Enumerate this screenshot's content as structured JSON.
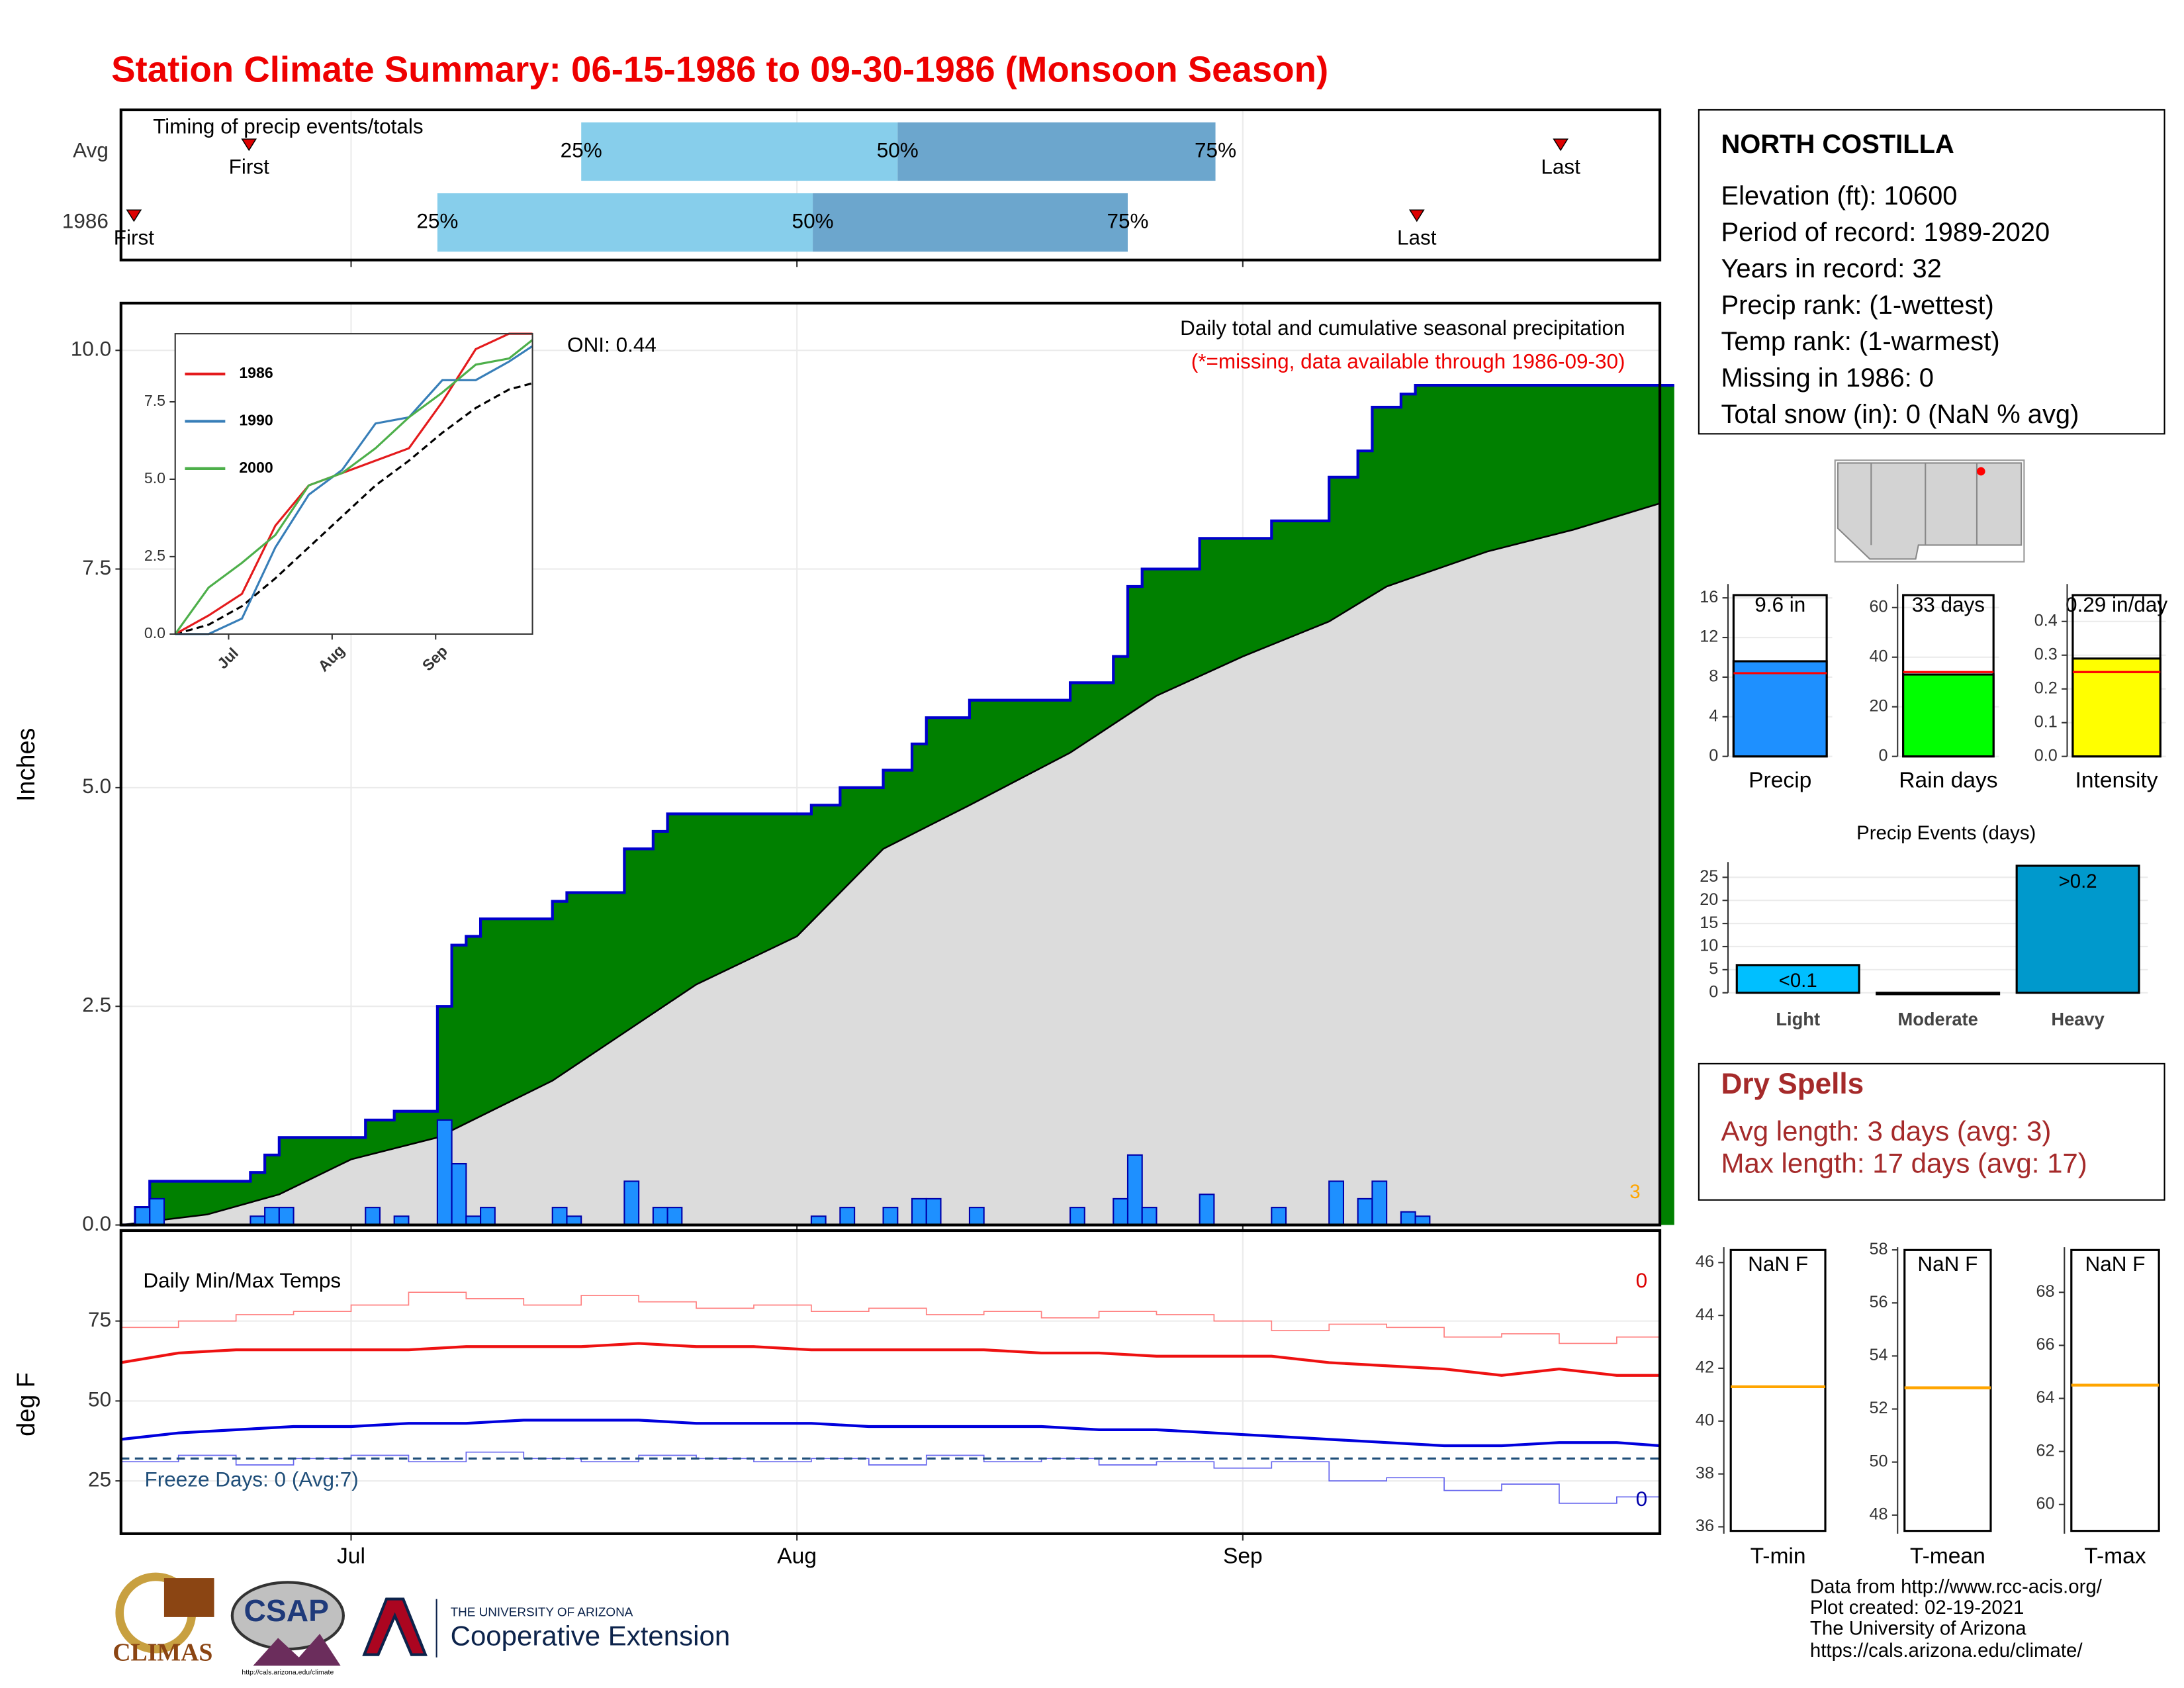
{
  "title": "Station Climate Summary: 06-15-1986 to 09-30-1986 (Monsoon Season)",
  "chart_data": [
    {
      "type": "timing",
      "title": "Timing of precip events/totals",
      "xlim": [
        0,
        107
      ],
      "xticks": [
        16,
        47,
        78
      ],
      "labels": {
        "first": "First",
        "q25": "25%",
        "q50": "50%",
        "q75": "75%",
        "last": "Last"
      },
      "colors": [
        "#87ceeb",
        "#6ca6cd"
      ],
      "marker_color": "#dd0000",
      "rows": [
        {
          "name": "Avg",
          "first": 8.9,
          "q25": 32,
          "q50": 54,
          "q75": 76.1,
          "last": 100.1
        },
        {
          "name": "1986",
          "first": 0.9,
          "q25": 22,
          "q50": 48.1,
          "q75": 70,
          "last": 90.1
        }
      ]
    },
    {
      "type": "precip_cumulative",
      "title": "Daily total and cumulative seasonal precipitation",
      "subtitle": "(*=missing, data available through 1986-09-30)",
      "ylabel": "Inches",
      "annotations": [
        "ONI: 0.44",
        "3"
      ],
      "xlim": [
        0,
        107
      ],
      "xticks": [
        {
          "value": 16,
          "label": "Jul"
        },
        {
          "value": 47,
          "label": "Aug"
        },
        {
          "value": 78,
          "label": "Sep"
        }
      ],
      "ylim": [
        0,
        10.54
      ],
      "yticks": [
        {
          "value": 0,
          "label": "0.0"
        },
        2.5,
        {
          "value": 5,
          "label": "5.0"
        },
        7.5,
        {
          "value": 10,
          "label": "10.0"
        }
      ],
      "grid": true,
      "fill_color": "#008000",
      "line_color": "#0000cc",
      "daily": {
        "color": "#1e90ff",
        "values": [
          0,
          0.2,
          0.3,
          0,
          0,
          0,
          0,
          0,
          0,
          0.1,
          0.2,
          0.2,
          0,
          0,
          0,
          0,
          0,
          0.2,
          0,
          0.1,
          0,
          0,
          1.2,
          0.7,
          0.1,
          0.2,
          0,
          0,
          0,
          0,
          0.2,
          0.1,
          0,
          0,
          0,
          0.5,
          0,
          0.2,
          0.2,
          0,
          0,
          0,
          0,
          0,
          0,
          0,
          0,
          0,
          0.1,
          0,
          0.2,
          0,
          0,
          0.2,
          0,
          0.3,
          0.3,
          0,
          0,
          0.2,
          0,
          0,
          0,
          0,
          0,
          0,
          0.2,
          0,
          0,
          0.3,
          0.8,
          0.2,
          0,
          0,
          0,
          0.35,
          0,
          0,
          0,
          0,
          0.2,
          0,
          0,
          0,
          0.5,
          0,
          0.3,
          0.5,
          0,
          0.15,
          0.1,
          0,
          0,
          0,
          0,
          0,
          0,
          0,
          0,
          0,
          0,
          0,
          0,
          0,
          0,
          0,
          0,
          0
        ]
      },
      "average": {
        "color": "#dcdcdc",
        "x": [
          0,
          6,
          11,
          16,
          22,
          30,
          40,
          47,
          53,
          59,
          66,
          72,
          78,
          84,
          88,
          95,
          101,
          107
        ],
        "values": [
          0,
          0.12,
          0.35,
          0.75,
          1.0,
          1.65,
          2.75,
          3.3,
          4.3,
          4.8,
          5.4,
          6.05,
          6.5,
          6.9,
          7.3,
          7.7,
          7.95,
          8.25
        ]
      }
    },
    {
      "type": "line",
      "xlim": [
        0,
        107
      ],
      "xticks": [
        {
          "value": 16,
          "label": "Jul"
        },
        {
          "value": 47,
          "label": "Aug"
        },
        {
          "value": 78,
          "label": "Sep"
        }
      ],
      "ylim": [
        0,
        9.7
      ],
      "yticks": [
        {
          "value": 0,
          "label": "0.0"
        },
        2.5,
        {
          "value": 5,
          "label": "5.0"
        },
        7.5
      ],
      "x": [
        0,
        10,
        20,
        30,
        40,
        50,
        60,
        70,
        80,
        90,
        100,
        107
      ],
      "series": [
        {
          "name": "1986",
          "color": "#e41a1c",
          "values": [
            0,
            0.6,
            1.3,
            3.5,
            4.8,
            5.2,
            5.6,
            6.0,
            7.5,
            9.2,
            9.7,
            9.7
          ]
        },
        {
          "name": "1990",
          "color": "#377eb8",
          "values": [
            0,
            0,
            0.5,
            2.8,
            4.5,
            5.3,
            6.8,
            7.0,
            8.2,
            8.2,
            8.8,
            9.3
          ]
        },
        {
          "name": "2000",
          "color": "#4daf4a",
          "values": [
            0,
            1.5,
            2.3,
            3.2,
            4.8,
            5.2,
            6.0,
            7.0,
            7.8,
            8.7,
            8.9,
            9.5
          ]
        }
      ],
      "average": {
        "color": "#000000",
        "values": [
          0,
          0.3,
          0.9,
          1.8,
          2.8,
          3.8,
          4.8,
          5.6,
          6.5,
          7.3,
          7.9,
          8.1
        ]
      }
    },
    {
      "type": "temps",
      "title": "Daily Min/Max Temps",
      "ylabel": "deg F",
      "xlim": [
        0,
        107
      ],
      "xticks": [
        {
          "value": 16,
          "label": "Jul"
        },
        {
          "value": 47,
          "label": "Aug"
        },
        {
          "value": 78,
          "label": "Sep"
        }
      ],
      "ylim": [
        8.5,
        103.3
      ],
      "yticks": [
        25,
        50,
        75
      ],
      "grid": true,
      "x": [
        0,
        4,
        8,
        12,
        16,
        20,
        24,
        28,
        32,
        36,
        40,
        44,
        48,
        52,
        56,
        60,
        64,
        68,
        72,
        76,
        80,
        84,
        88,
        92,
        96,
        100,
        104,
        107
      ],
      "series": [
        {
          "color": "#ff8080",
          "values": [
            73,
            75,
            77,
            78,
            80,
            84,
            82,
            80,
            83,
            81,
            79,
            80,
            78,
            79,
            77,
            78,
            76,
            78,
            77,
            75,
            72,
            74,
            73,
            70,
            71,
            68,
            70,
            71
          ]
        },
        {
          "color": "#ee1111",
          "values": [
            62,
            65,
            66,
            66,
            66,
            66,
            67,
            67,
            67,
            68,
            67,
            67,
            66,
            66,
            66,
            66,
            65,
            65,
            64,
            64,
            64,
            62,
            61,
            60,
            58,
            60,
            58,
            58
          ]
        },
        {
          "color": "#0000dd",
          "values": [
            38,
            40,
            41,
            42,
            42,
            43,
            43,
            44,
            44,
            44,
            43,
            43,
            43,
            42,
            42,
            42,
            42,
            41,
            41,
            40,
            39,
            38,
            37,
            36,
            36,
            37,
            37,
            36
          ]
        },
        {
          "color": "#6666ee",
          "values": [
            31,
            33,
            30,
            32,
            33,
            31,
            34,
            32,
            31,
            33,
            32,
            31,
            32,
            30,
            33,
            31,
            32,
            30,
            31,
            29,
            31,
            25,
            26,
            22,
            24,
            18,
            20,
            16
          ]
        }
      ],
      "freeze": {
        "value": 32,
        "color": "#1f4e79"
      },
      "annotations": [
        {
          "text": "Freeze Days: 0 (Avg:7)",
          "color": "#1f4e79"
        },
        {
          "text": "0",
          "color": "#dd0000"
        },
        {
          "text": "0",
          "color": "#0000aa"
        }
      ]
    },
    {
      "type": "bar",
      "categories": [
        "Precip"
      ],
      "values": [
        9.6
      ],
      "value_labels": [
        "9.6 in"
      ],
      "color": "#1e90ff",
      "average": 8.4,
      "average_color": "#ff0000",
      "ylim": [
        0,
        17.4
      ],
      "yticks": [
        0,
        4,
        8,
        12,
        16
      ],
      "grid": true
    },
    {
      "type": "bar",
      "categories": [
        "Rain days"
      ],
      "values": [
        33
      ],
      "value_labels": [
        "33 days"
      ],
      "color": "#00ff00",
      "average": 34,
      "average_color": "#ff0000",
      "ylim": [
        0,
        69.5
      ],
      "yticks": [
        0,
        20,
        40,
        60
      ],
      "grid": true
    },
    {
      "type": "bar",
      "categories": [
        "Intensity"
      ],
      "values": [
        0.29
      ],
      "value_labels": [
        "0.29 in/day"
      ],
      "color": "#ffff00",
      "average": 0.25,
      "average_color": "#ff0000",
      "ylim": [
        0,
        0.511
      ],
      "yticks": [
        {
          "value": 0,
          "label": "0.0"
        },
        0.1,
        0.2,
        0.3,
        0.4
      ],
      "grid": true
    },
    {
      "type": "events",
      "title": "Precip Events (days)",
      "categories": [
        "Light",
        "Moderate",
        "Heavy"
      ],
      "values": [
        6,
        0,
        27.5
      ],
      "value_labels": [
        "<0.1",
        null,
        ">0.2"
      ],
      "colors": [
        "#00bfff",
        "#00bfff",
        "#0099cc"
      ],
      "ylim": [
        0,
        28.3
      ],
      "yticks": [
        0,
        5,
        10,
        15,
        20,
        25
      ],
      "grid": true
    },
    {
      "type": "box",
      "categories": [
        "T-min"
      ],
      "values": [
        null
      ],
      "value_labels": [
        "NaN F"
      ],
      "average": 41.3,
      "average_color": "#ffa500",
      "ylim": [
        35.74,
        46.58
      ],
      "yticks": [
        36,
        38,
        40,
        42,
        44,
        46
      ]
    },
    {
      "type": "box",
      "categories": [
        "T-mean"
      ],
      "values": [
        null
      ],
      "value_labels": [
        "NaN F"
      ],
      "average": 52.8,
      "average_color": "#ffa500",
      "ylim": [
        47.3,
        58.1
      ],
      "yticks": [
        48,
        50,
        52,
        54,
        56,
        58
      ]
    },
    {
      "type": "box",
      "categories": [
        "T-max"
      ],
      "values": [
        null
      ],
      "value_labels": [
        "NaN F"
      ],
      "average": 64.5,
      "average_color": "#ffa500",
      "ylim": [
        58.9,
        69.7
      ],
      "yticks": [
        60,
        62,
        64,
        66,
        68
      ]
    }
  ],
  "station": {
    "name": "NORTH COSTILLA",
    "lines": [
      "Elevation (ft): 10600",
      "Period of record: 1989-2020",
      "Years in record: 32",
      "Precip rank:  (1-wettest)",
      "Temp rank:  (1-warmest)",
      "Missing in 1986: 0",
      "Total snow (in): 0 (NaN % avg)"
    ]
  },
  "dry_spells": {
    "title": "Dry Spells",
    "lines": [
      "Avg length: 3 days (avg: 3)",
      "Max length: 17 days (avg: 17)"
    ]
  },
  "footer": [
    "Data from http://www.rcc-acis.org/",
    "Plot created: 02-19-2021",
    "The University of Arizona",
    "https://cals.arizona.edu/climate/"
  ],
  "logos": {
    "climas": "CLIMAS",
    "csap": "CSAP",
    "csap_url": "http://cals.arizona.edu/climate",
    "ua": "THE UNIVERSITY OF ARIZONA",
    "extension": "Cooperative Extension"
  }
}
